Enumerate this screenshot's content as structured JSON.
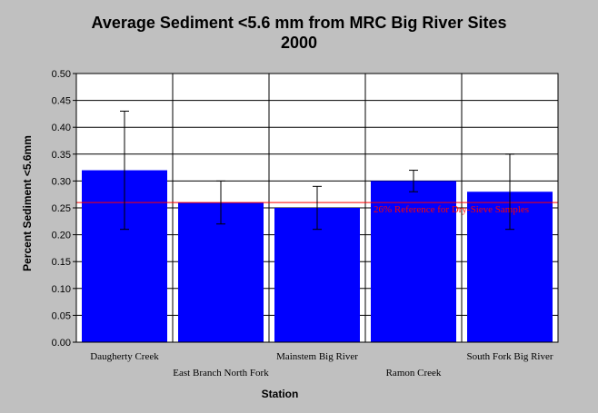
{
  "chart_data": {
    "type": "bar",
    "title": [
      "Average Sediment <5.6 mm from MRC Big River Sites",
      "2000"
    ],
    "xlabel": "Station",
    "ylabel": "Percent Sediment <5.6mm",
    "ylim": [
      0,
      0.5
    ],
    "yticks": [
      "0.00",
      "0.05",
      "0.10",
      "0.15",
      "0.20",
      "0.25",
      "0.30",
      "0.35",
      "0.40",
      "0.45",
      "0.50"
    ],
    "categories": [
      "Daugherty Creek",
      "East Branch North Fork",
      "Mainstem Big River",
      "Ramon Creek",
      "South Fork Big River"
    ],
    "values": [
      0.32,
      0.26,
      0.25,
      0.3,
      0.28
    ],
    "error_low": [
      0.21,
      0.22,
      0.21,
      0.28,
      0.21
    ],
    "error_high": [
      0.43,
      0.3,
      0.29,
      0.32,
      0.35
    ],
    "reference_line": {
      "value": 0.26,
      "label": "26% Reference for Dry-Sieve Samples",
      "color": "#ff0000"
    },
    "bar_color": "#0000ff",
    "grid": true
  }
}
